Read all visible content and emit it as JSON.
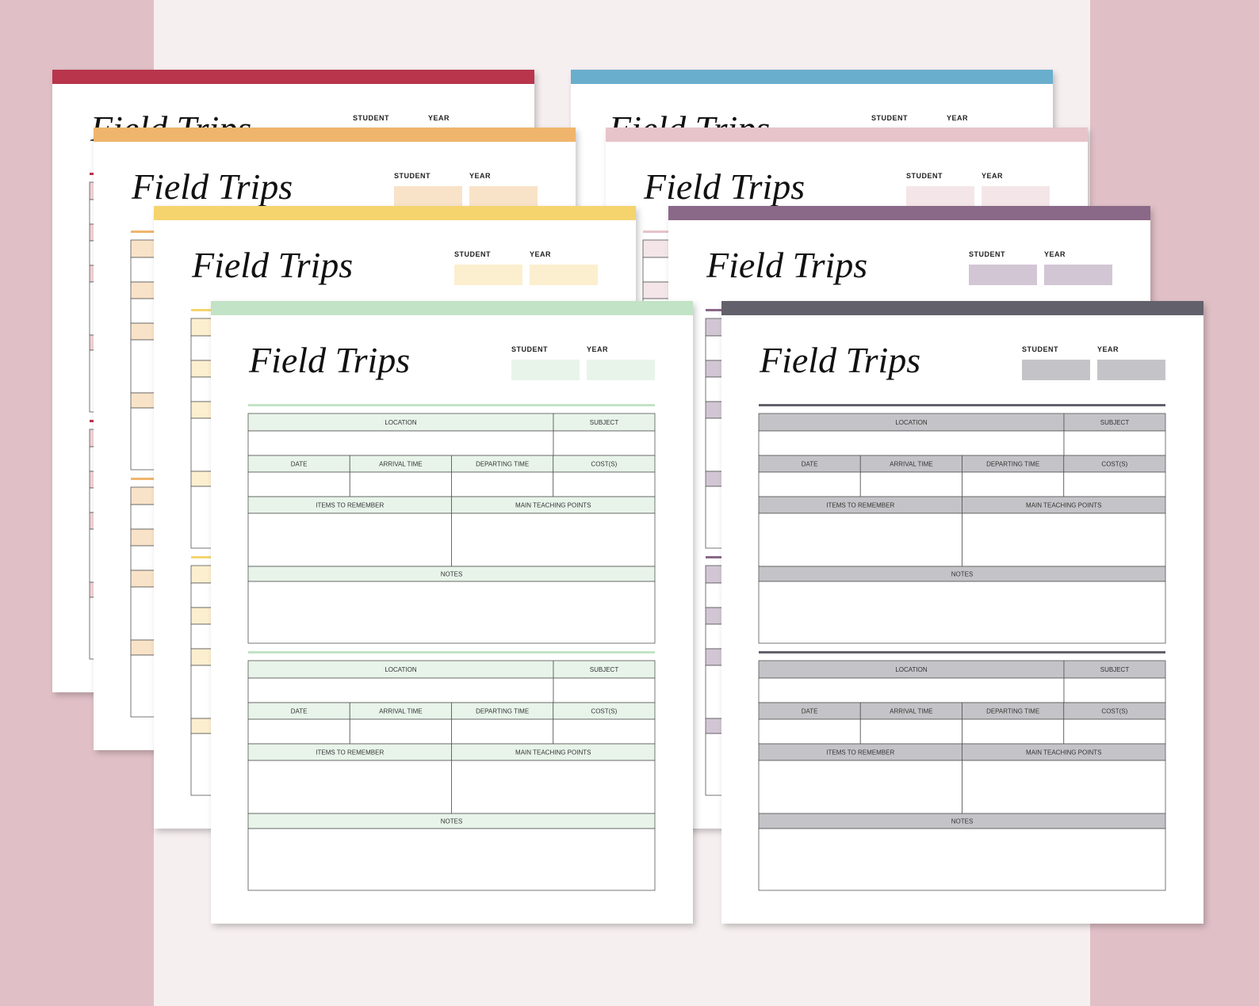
{
  "sheets": [
    {
      "accent": "#b8354c",
      "tint": "#f2d3d7",
      "title": "Field Trips",
      "student": "STUDENT",
      "year": "YEAR"
    },
    {
      "accent": "#efb56c",
      "tint": "#f9e3c8",
      "title": "Field Trips",
      "student": "STUDENT",
      "year": "YEAR"
    },
    {
      "accent": "#f5d46e",
      "tint": "#fcefcf",
      "title": "Field Trips",
      "student": "STUDENT",
      "year": "YEAR"
    },
    {
      "accent": "#c2e3c6",
      "tint": "#e8f4ea",
      "title": "Field Trips",
      "student": "STUDENT",
      "year": "YEAR"
    },
    {
      "accent": "#6aaecd",
      "tint": "#dcedf5",
      "title": "Field Trips",
      "student": "STUDENT",
      "year": "YEAR"
    },
    {
      "accent": "#e6c4ca",
      "tint": "#f4e6e8",
      "title": "Field Trips",
      "student": "STUDENT",
      "year": "YEAR"
    },
    {
      "accent": "#8a6888",
      "tint": "#d2c6d4",
      "title": "Field Trips",
      "student": "STUDENT",
      "year": "YEAR"
    },
    {
      "accent": "#62616b",
      "tint": "#c4c4c8",
      "title": "Field Trips",
      "student": "STUDENT",
      "year": "YEAR"
    }
  ],
  "form": {
    "location": "LOCATION",
    "subject": "SUBJECT",
    "date": "DATE",
    "arrival": "ARRIVAL TIME",
    "departing": "DEPARTING TIME",
    "costs": "COST(S)",
    "items": "ITEMS TO REMEMBER",
    "teaching": "MAIN TEACHING POINTS",
    "notes": "NOTES"
  }
}
